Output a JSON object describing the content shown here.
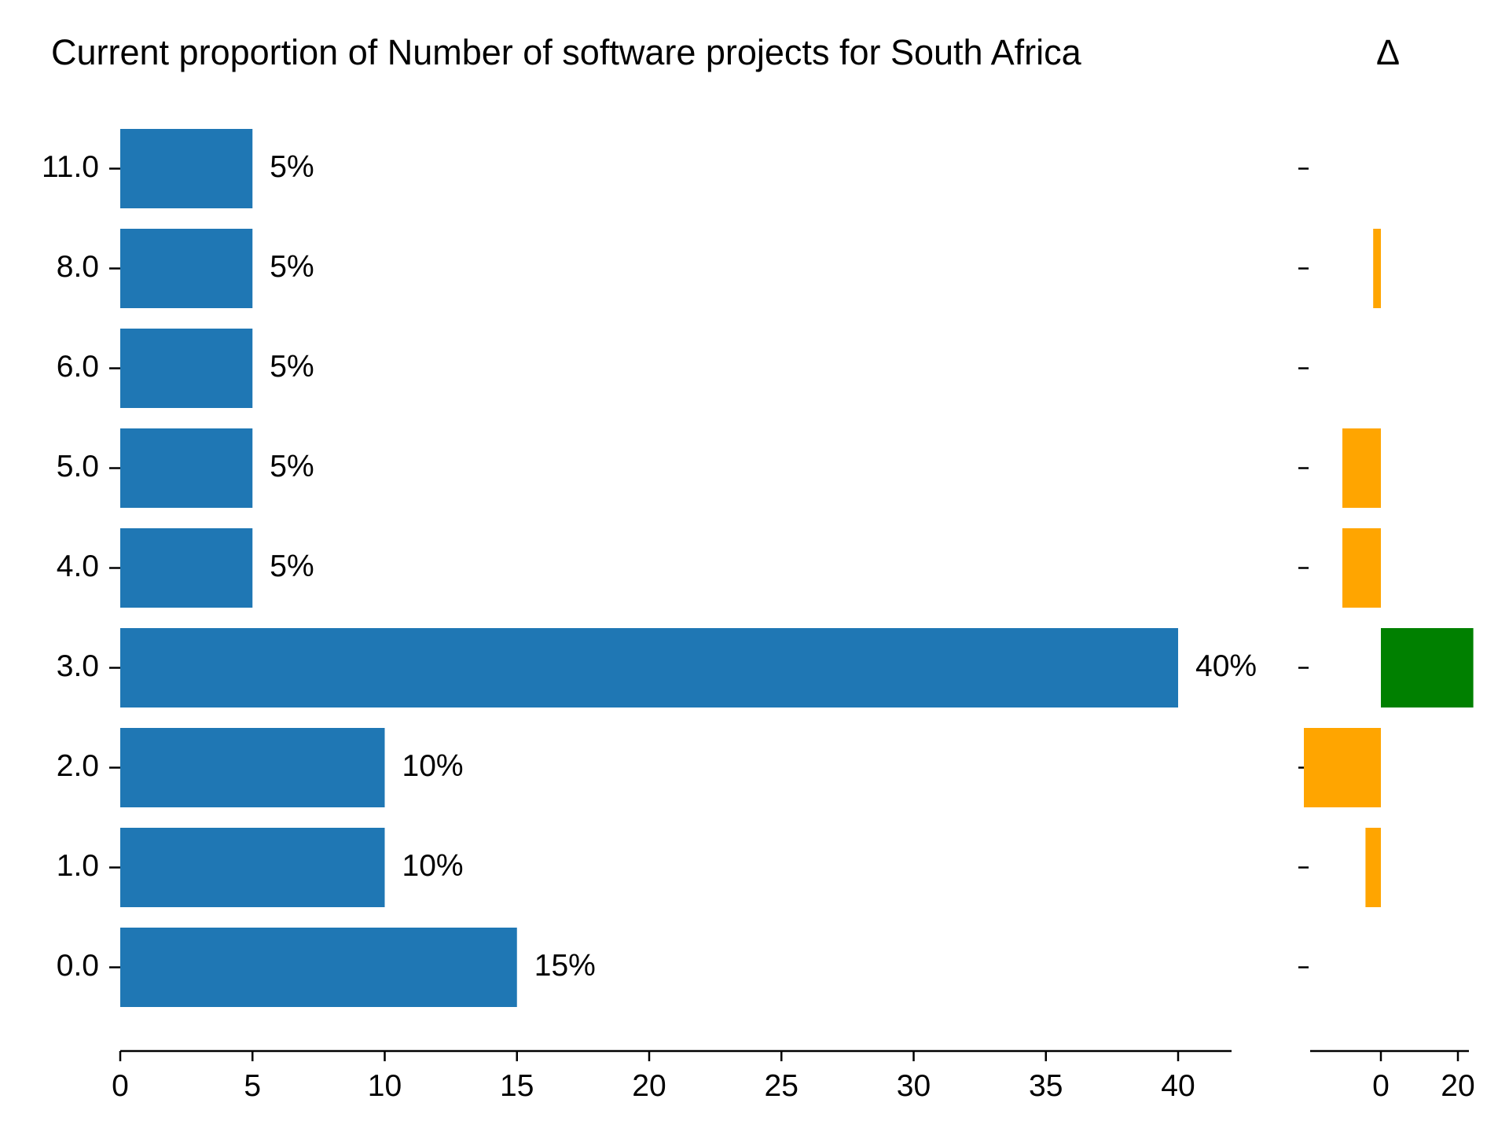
{
  "chart_data": [
    {
      "type": "bar",
      "orientation": "horizontal",
      "title": "Current proportion of Number of software projects for South Africa",
      "categories": [
        "11.0",
        "8.0",
        "6.0",
        "5.0",
        "4.0",
        "3.0",
        "2.0",
        "1.0",
        "0.0"
      ],
      "values": [
        5,
        5,
        5,
        5,
        5,
        40,
        10,
        10,
        15
      ],
      "value_labels": [
        "5%",
        "5%",
        "5%",
        "5%",
        "5%",
        "40%",
        "10%",
        "10%",
        "15%"
      ],
      "x_ticks": [
        "0",
        "5",
        "10",
        "15",
        "20",
        "25",
        "30",
        "35",
        "40"
      ],
      "xlim": [
        0,
        42
      ],
      "xlabel": "",
      "ylabel": "",
      "bar_color": "#1f77b4",
      "grid": false
    },
    {
      "type": "bar",
      "orientation": "horizontal",
      "title": "Δ",
      "categories": [
        "11.0",
        "8.0",
        "6.0",
        "5.0",
        "4.0",
        "3.0",
        "2.0",
        "1.0",
        "0.0"
      ],
      "values": [
        0,
        -2,
        0,
        -10,
        -10,
        24,
        -20,
        -4,
        0
      ],
      "x_ticks": [
        "0",
        "20"
      ],
      "xlim": [
        -22,
        26
      ],
      "xlabel": "",
      "ylabel": "",
      "positive_color": "#008000",
      "negative_color": "#ffa500",
      "grid": false
    }
  ]
}
